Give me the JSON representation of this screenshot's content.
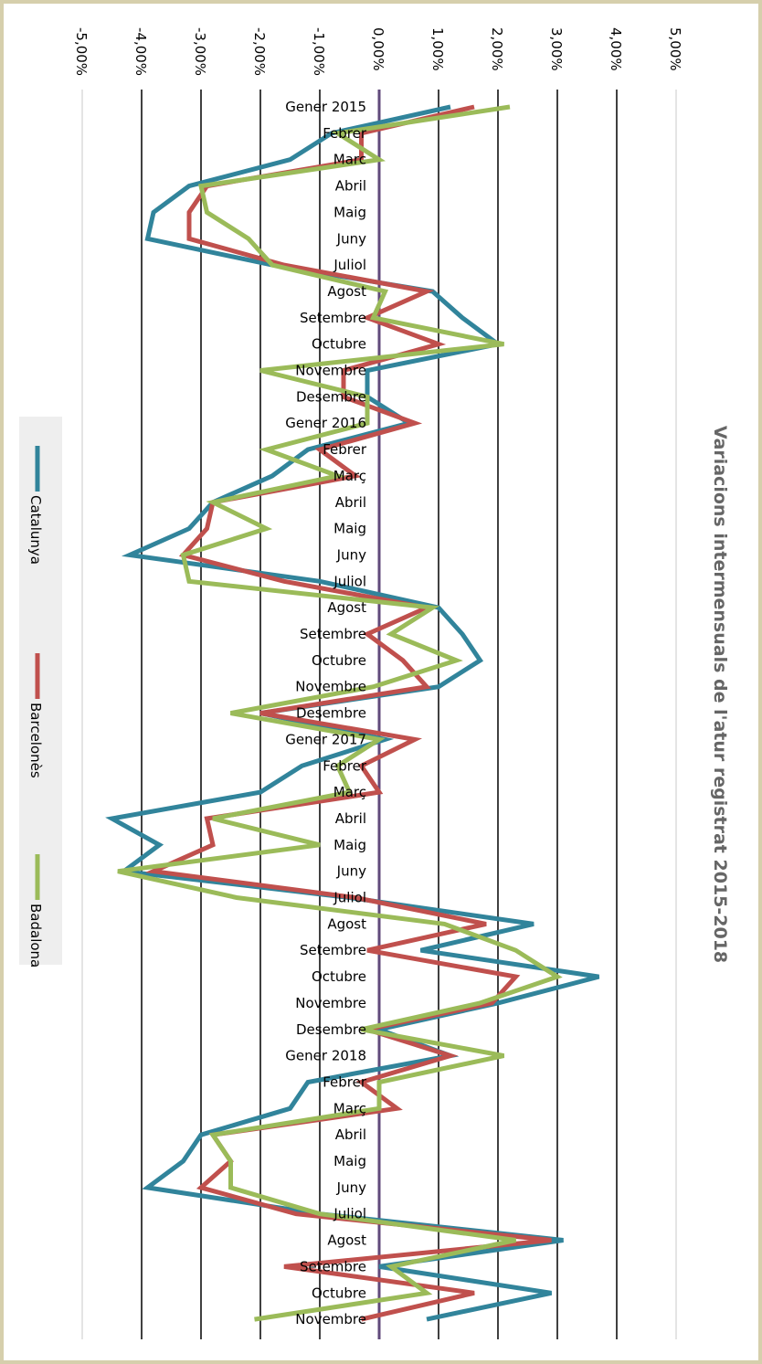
{
  "chart_data": {
    "type": "line",
    "orientation": "rotated-90-clockwise",
    "title": "Variacions intermensuals de l'atur registrat 2015-2018",
    "categories": [
      "Gener 2015",
      "Febrer",
      "Març",
      "Abril",
      "Maig",
      "Juny",
      "Juliol",
      "Agost",
      "Setembre",
      "Octubre",
      "Novembre",
      "Desembre",
      "Gener 2016",
      "Febrer",
      "Març",
      "Abril",
      "Maig",
      "Juny",
      "Juliol",
      "Agost",
      "Setembre",
      "Octubre",
      "Novembre",
      "Desembre",
      "Gener 2017",
      "Febrer",
      "Març",
      "Abril",
      "Maig",
      "Juny",
      "Juliol",
      "Agost",
      "Setembre",
      "Octubre",
      "Novembre",
      "Desembre",
      "Gener 2018",
      "Febrer",
      "Març",
      "Abril",
      "Maig",
      "Juny",
      "Juliol",
      "Agost",
      "Setembre",
      "Octubre",
      "Novembre"
    ],
    "category_labels": [
      "Gener 2015",
      "Febrer",
      "Marc",
      "Abril",
      "Maig",
      "Juny",
      "Juliol",
      "Agost",
      "Setembre",
      "Octubre",
      "Novembre",
      "Desembre",
      "Gener 2016",
      "Febrer",
      "Març",
      "Abril",
      "Maig",
      "Juny",
      "Juliol",
      "Agost",
      "Setembre",
      "Octubre",
      "Novembre",
      "Desembre",
      "Gener 2017",
      "Febrer",
      "Març",
      "Abril",
      "Maig",
      "Juny",
      "Juliol",
      "Agost",
      "Setembre",
      "Octubre",
      "Novembre",
      "Desembre",
      "Gener 2018",
      "Febrer",
      "Març",
      "Abril",
      "Maig",
      "Juny",
      "Juliol",
      "Agost",
      "Setembre",
      "Octubre",
      "Novembre"
    ],
    "value_axis": {
      "min": -5,
      "max": 5,
      "step": 1,
      "tick_labels": [
        "-5,00%",
        "-4,00%",
        "-3,00%",
        "-2,00%",
        "-1,00%",
        "0,00%",
        "1,00%",
        "2,00%",
        "3,00%",
        "4,00%",
        "5,00%"
      ]
    },
    "gridlines": true,
    "legend_position": "left",
    "series": [
      {
        "name": "Catalunya",
        "color": "#31849b",
        "values": [
          1.2,
          -0.8,
          -1.5,
          -3.2,
          -3.8,
          -3.9,
          -1.8,
          0.9,
          1.4,
          2.0,
          -0.2,
          -0.2,
          0.5,
          -1.2,
          -1.8,
          -2.8,
          -3.2,
          -4.2,
          -1.0,
          1.0,
          1.4,
          1.7,
          1.0,
          -2.0,
          0.1,
          -1.3,
          -2.0,
          -4.5,
          -3.7,
          -4.3,
          -0.5,
          2.6,
          0.7,
          3.7,
          2.0,
          0.0,
          1.2,
          -1.2,
          -1.5,
          -3.0,
          -3.3,
          -3.9,
          -1.0,
          3.1,
          0.0,
          2.9,
          0.8
        ]
      },
      {
        "name": "Barcelonès",
        "color": "#c0504d",
        "values": [
          1.6,
          -0.3,
          -0.3,
          -2.9,
          -3.2,
          -3.2,
          -1.6,
          0.8,
          -0.2,
          1.0,
          -0.6,
          -0.6,
          0.6,
          -1.0,
          -0.4,
          -2.8,
          -2.9,
          -3.3,
          -1.6,
          0.8,
          -0.2,
          0.4,
          0.8,
          -2.0,
          0.6,
          -0.3,
          0.0,
          -2.9,
          -2.8,
          -3.8,
          -0.4,
          1.8,
          -0.2,
          2.3,
          1.9,
          -0.2,
          1.2,
          -0.3,
          0.3,
          -2.8,
          -2.5,
          -3.0,
          -1.4,
          2.9,
          -1.6,
          1.6,
          -0.3
        ]
      },
      {
        "name": "Badalona",
        "color": "#9bbb59",
        "values": [
          2.2,
          -0.7,
          0.0,
          -3.0,
          -2.9,
          -2.2,
          -1.8,
          0.1,
          -0.1,
          2.1,
          -2.0,
          -0.2,
          -0.2,
          -1.9,
          -0.7,
          -2.8,
          -1.9,
          -3.3,
          -3.2,
          0.9,
          0.2,
          1.3,
          -0.1,
          -2.5,
          0.0,
          -0.7,
          -0.5,
          -2.8,
          -1.0,
          -4.4,
          -2.4,
          1.1,
          2.3,
          3.0,
          1.7,
          -0.3,
          2.1,
          0.0,
          0.0,
          -2.8,
          -2.5,
          -2.5,
          -1.0,
          2.3,
          0.2,
          0.8,
          -2.1
        ]
      }
    ]
  }
}
